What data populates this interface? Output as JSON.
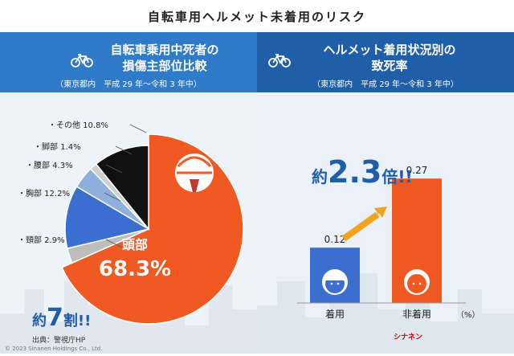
{
  "title": "自転車用ヘルメット未着用のリスク",
  "left_panel": {
    "heading_line1": "自転車乗用中死者の",
    "heading_line2": "損傷主部位比較",
    "subheading": "（東京都内　平成 29 年〜令和 3 年中）",
    "callout": "約7割!!",
    "callout_pre": "約",
    "callout_num": "7",
    "callout_post": "割!!"
  },
  "right_panel": {
    "heading_line1": "ヘルメット着用状況別の",
    "heading_line2": "致死率",
    "subheading": "（東京都内　平成 29 年〜令和 3 年中）",
    "callout_pre": "約",
    "callout_num": "2.3",
    "callout_post": "倍!!",
    "unit": "（%）"
  },
  "chart_data": [
    {
      "type": "pie",
      "title": "自転車乗用中死者の損傷主部位比較",
      "categories": [
        "頭部",
        "頸部",
        "胸部",
        "腰部",
        "脚部",
        "その他"
      ],
      "values": [
        68.3,
        2.9,
        12.2,
        4.3,
        1.4,
        10.8
      ],
      "unit": "%",
      "colors": [
        "#f05a22",
        "#bdbdbd",
        "#3a6fcf",
        "#8fb0dc",
        "#cfcfcf",
        "#111111"
      ]
    },
    {
      "type": "bar",
      "title": "ヘルメット着用状況別の致死率",
      "categories": [
        "着用",
        "非着用"
      ],
      "values": [
        0.12,
        0.27
      ],
      "ylabel": "%",
      "ylim": [
        0,
        0.3
      ],
      "colors": [
        "#3a6fcf",
        "#f05a22"
      ]
    }
  ],
  "source": "出典：警視庁HP",
  "copyright": "© 2023 Sinanen Holdings Co., Ltd.",
  "logo_text": "シナネン"
}
